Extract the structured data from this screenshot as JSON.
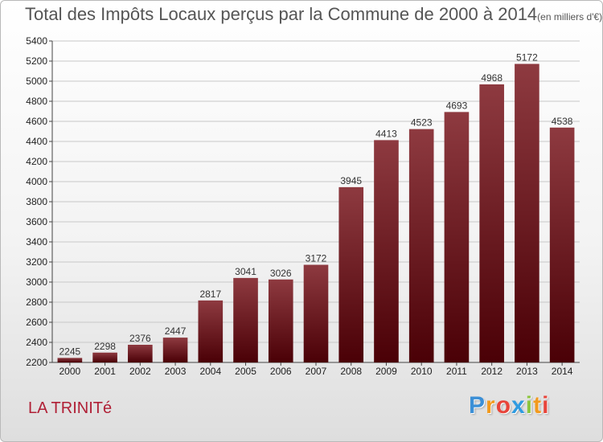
{
  "title": "Total des Impôts Locaux perçus par la Commune de 2000 à 2014",
  "unit_note": "(en milliers d'€)",
  "commune": "LA TRINITé",
  "brand": {
    "letters": [
      "P",
      "r",
      "o",
      "x",
      "i",
      "t",
      "i"
    ],
    "colors": [
      "#3b8fd6",
      "#f29a1d",
      "#e8443a",
      "#2e9be0",
      "#8cc63f",
      "#f29a1d",
      "#e8443a"
    ]
  },
  "colors": {
    "bar_top": "#8e3a40",
    "bar_bottom": "#4a0006",
    "grid": "#c8c8c8"
  },
  "chart_data": {
    "type": "bar",
    "title": "Total des Impôts Locaux perçus par la Commune de 2000 à 2014",
    "xlabel": "",
    "ylabel": "",
    "categories": [
      "2000",
      "2001",
      "2002",
      "2003",
      "2004",
      "2005",
      "2006",
      "2007",
      "2008",
      "2009",
      "2010",
      "2011",
      "2012",
      "2013",
      "2014"
    ],
    "values": [
      2245,
      2298,
      2376,
      2447,
      2817,
      3041,
      3026,
      3172,
      3945,
      4413,
      4523,
      4693,
      4968,
      5172,
      4538
    ],
    "ylim": [
      2200,
      5400
    ],
    "yticks": [
      2200,
      2400,
      2600,
      2800,
      3000,
      3200,
      3400,
      3600,
      3800,
      4000,
      4200,
      4400,
      4600,
      4800,
      5000,
      5200,
      5400
    ],
    "grid": true
  }
}
